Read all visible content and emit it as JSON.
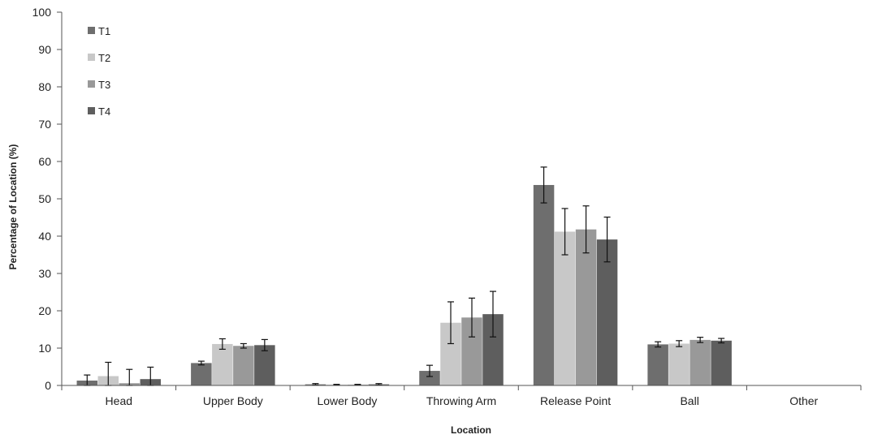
{
  "chart_data": {
    "type": "bar",
    "title": "",
    "xlabel": "Location",
    "ylabel": "Percentage of Location (%)",
    "ylim": [
      0,
      100
    ],
    "yticks": [
      0,
      10,
      20,
      30,
      40,
      50,
      60,
      70,
      80,
      90,
      100
    ],
    "grid": false,
    "legend_position": "top-left",
    "categories": [
      "Head",
      "Upper Body",
      "Lower Body",
      "Throwing Arm",
      "Release Point",
      "Ball",
      "Other"
    ],
    "series": [
      {
        "name": "T1",
        "color": "#6e6e6e",
        "values": [
          1.3,
          6.0,
          0.3,
          3.9,
          53.7,
          11.0,
          0.1
        ],
        "errors": [
          1.5,
          0.5,
          0.2,
          1.5,
          4.8,
          0.7,
          0.0
        ]
      },
      {
        "name": "T2",
        "color": "#c8c8c8",
        "values": [
          2.5,
          11.1,
          0.2,
          16.8,
          41.2,
          11.2,
          0.0
        ],
        "errors": [
          3.7,
          1.4,
          0.1,
          5.6,
          6.2,
          0.8,
          0.0
        ]
      },
      {
        "name": "T3",
        "color": "#999999",
        "values": [
          0.6,
          10.6,
          0.2,
          18.2,
          41.8,
          12.2,
          0.0
        ],
        "errors": [
          3.7,
          0.6,
          0.1,
          5.2,
          6.3,
          0.7,
          0.0
        ]
      },
      {
        "name": "T4",
        "color": "#5e5e5e",
        "values": [
          1.7,
          10.8,
          0.3,
          19.1,
          39.1,
          12.0,
          0.0
        ],
        "errors": [
          3.2,
          1.5,
          0.2,
          6.1,
          6.0,
          0.6,
          0.0
        ]
      }
    ]
  }
}
